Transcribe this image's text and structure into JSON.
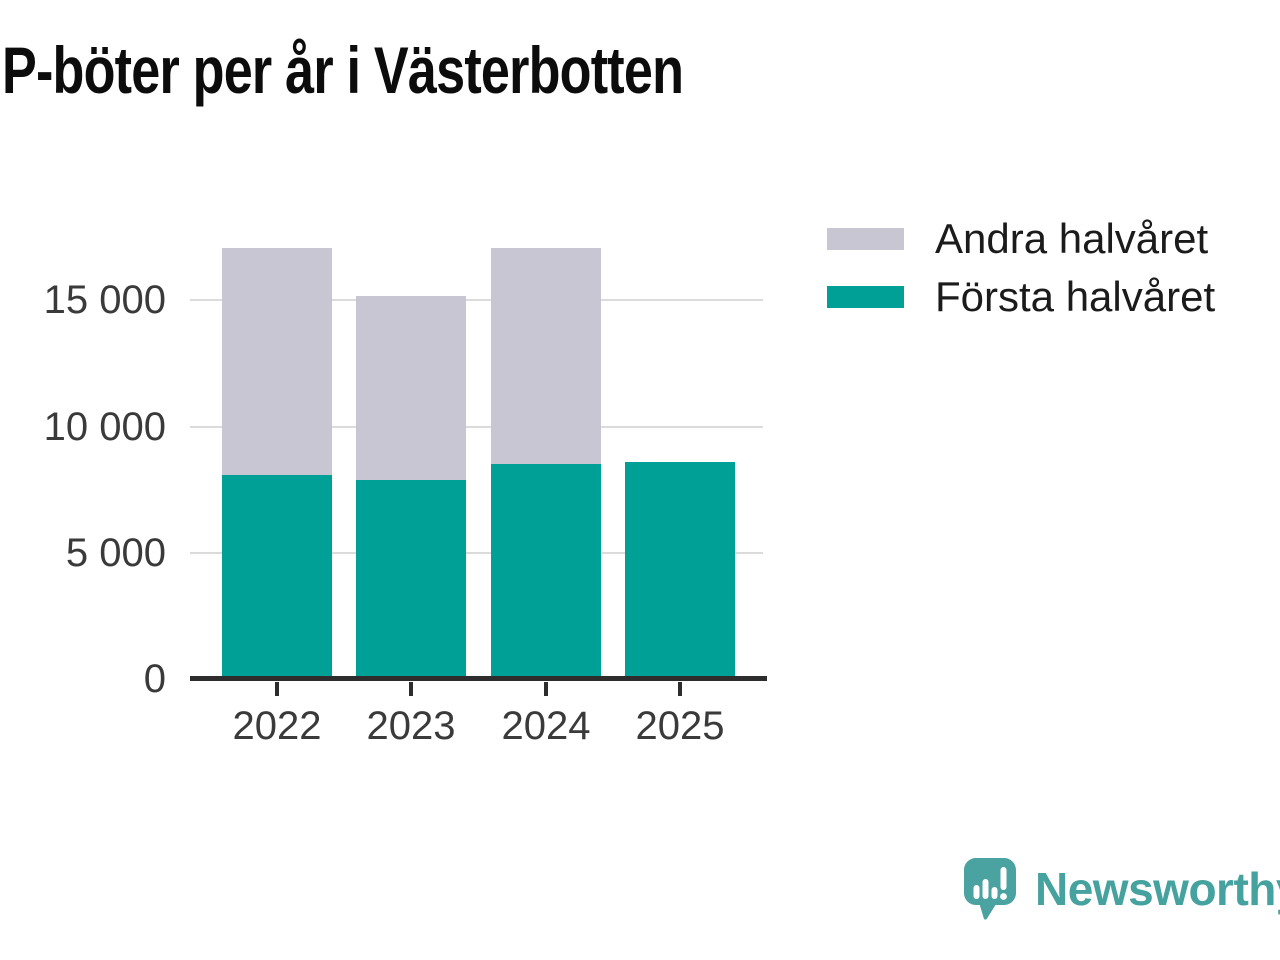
{
  "title": "P-böter per år i Västerbotten",
  "chart_data": {
    "type": "bar",
    "stacked": true,
    "title": "P-böter per år i Västerbotten",
    "categories": [
      "2022",
      "2023",
      "2024",
      "2025"
    ],
    "series": [
      {
        "name": "Första halvåret",
        "color": "#00a096",
        "values": [
          8100,
          7900,
          8500,
          8600
        ]
      },
      {
        "name": "Andra halvåret",
        "color": "#c8c6d3",
        "values": [
          9000,
          7300,
          8550,
          0
        ]
      }
    ],
    "totals": [
      17100,
      15200,
      17050,
      8600
    ],
    "ylim": [
      0,
      17500
    ],
    "yticks": [
      0,
      5000,
      10000,
      15000
    ],
    "ytick_labels": [
      "0",
      "5 000",
      "10 000",
      "15 000"
    ],
    "xlabel": "",
    "ylabel": "",
    "grid": true,
    "legend_position": "top-right"
  },
  "legend": {
    "items": [
      {
        "label": "Andra halvåret",
        "color": "#c8c6d3"
      },
      {
        "label": "Första halvåret",
        "color": "#00a096"
      }
    ]
  },
  "branding": {
    "name": "Newsworthy",
    "logo_color": "#4aa3a0",
    "text_color": "#46a29e"
  },
  "colors": {
    "first_half": "#00a096",
    "second_half": "#c8c6d3",
    "gridline": "#dbdbdb",
    "axis": "#2d2d2d",
    "tick_text": "#3a3a3a",
    "title_text": "#0c0c0c",
    "background": "#ffffff"
  }
}
